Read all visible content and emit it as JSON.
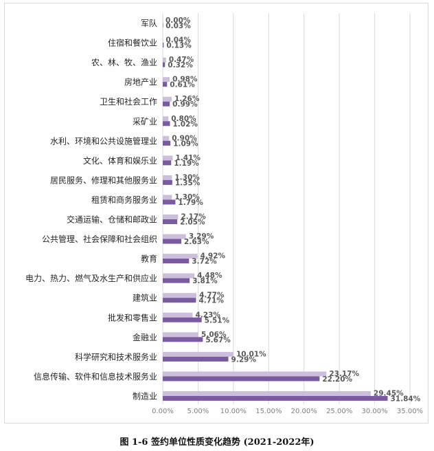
{
  "figure": {
    "caption": "图 1-6 签约单位性质变化趋势 (2021-2022年)"
  },
  "colors": {
    "series_2021": "#cbbfdc",
    "series_2022": "#7a5ba2",
    "grid": "#d9d9d9",
    "label_text": "#595959",
    "axis_text": "#7f7f7f"
  },
  "chart_data": {
    "type": "bar",
    "orientation": "horizontal",
    "categories": [
      "军队",
      "住宿和餐饮业",
      "农、林、牧、渔业",
      "房地产业",
      "卫生和社会工作",
      "采矿业",
      "水利、环境和公共设施管理业",
      "文化、体育和娱乐业",
      "居民服务、修理和其他服务业",
      "租赁和商务服务业",
      "交通运输、仓储和邮政业",
      "公共管理、社会保障和社会组织",
      "教育",
      "电力、热力、燃气及水生产和供应业",
      "建筑业",
      "批发和零售业",
      "金融业",
      "科学研究和技术服务业",
      "信息传输、软件和信息技术服务业",
      "制造业"
    ],
    "series": [
      {
        "values": [
          0.0,
          0.04,
          0.47,
          0.98,
          1.26,
          0.8,
          0.9,
          1.41,
          1.3,
          1.3,
          2.17,
          3.29,
          4.92,
          4.48,
          4.77,
          4.23,
          5.06,
          10.01,
          23.17,
          29.45
        ],
        "labels": [
          "0.00%",
          "0.04%",
          "0.47%",
          "0.98%",
          "1.26%",
          "0.80%",
          "0.90%",
          "1.41%",
          "1.30%",
          "1.30%",
          "2.17%",
          "3.29%",
          "4.92%",
          "4.48%",
          "4.77%",
          "4.23%",
          "5.06%",
          "10.01%",
          "23.17%",
          "29.45%"
        ]
      },
      {
        "values": [
          0.03,
          0.13,
          0.32,
          0.61,
          0.99,
          1.02,
          1.09,
          1.19,
          1.35,
          1.79,
          2.05,
          2.63,
          3.72,
          3.81,
          4.71,
          5.51,
          5.67,
          9.29,
          22.2,
          31.84
        ],
        "labels": [
          "0.03%",
          "0.13%",
          "0.32%",
          "0.61%",
          "0.99%",
          "1.02%",
          "1.09%",
          "1.19%",
          "1.35%",
          "1.79%",
          "2.05%",
          "2.63%",
          "3.72%",
          "3.81%",
          "4.71%",
          "5.51%",
          "5.67%",
          "9.29%",
          "22.20%",
          "31.84%"
        ]
      }
    ],
    "x_ticks": [
      "0.00%",
      "5.00%",
      "10.00%",
      "15.00%",
      "20.00%",
      "25.00%",
      "30.00%",
      "35.00%"
    ],
    "xlim": [
      0,
      35
    ],
    "grid": "vertical",
    "legend": "none"
  }
}
